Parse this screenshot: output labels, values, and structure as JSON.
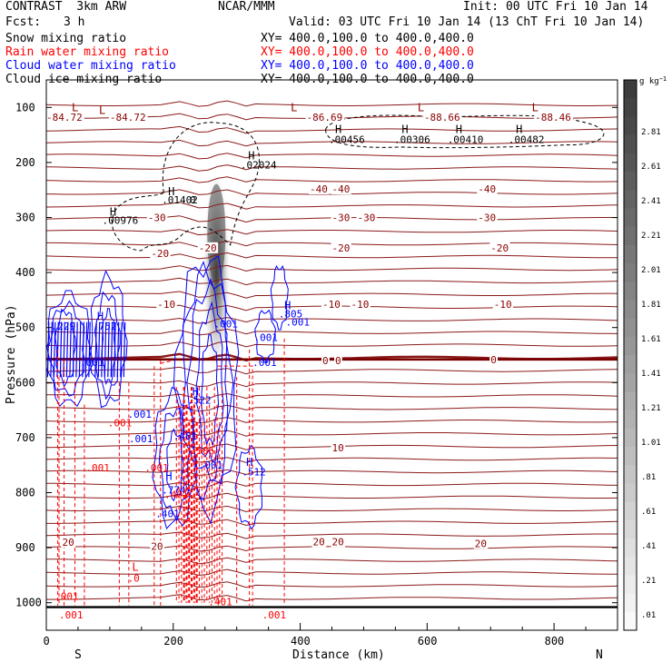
{
  "header": {
    "title": "CONTRAST  3km ARW",
    "center": "NCAR/MMM",
    "init": "Init: 00 UTC Fri 10 Jan 14",
    "fcst_label": "Fcst:",
    "fcst_value": "3 h",
    "valid": "Valid: 03 UTC Fri 10 Jan 14 (13 ChT Fri 10 Jan 14)"
  },
  "legend": [
    {
      "label": "Snow mixing ratio",
      "xy": "XY= 400.0,100.0 to 400.0,400.0",
      "color": "#000000"
    },
    {
      "label": "Rain water mixing ratio",
      "xy": "XY= 400.0,100.0 to 400.0,400.0",
      "color": "#ff0000"
    },
    {
      "label": "Cloud water mixing ratio",
      "xy": "XY= 400.0,100.0 to 400.0,400.0",
      "color": "#0000ff"
    },
    {
      "label": "Cloud ice mixing ratio",
      "xy": "XY= 400.0,100.0 to 400.0,400.0",
      "color": "#000000"
    }
  ],
  "chart_data": {
    "type": "cross-section",
    "xlabel": "Distance (km)",
    "ylabel": "Pressure (hPa)",
    "xlim": [
      0,
      900
    ],
    "ylim": [
      1050,
      50
    ],
    "xticks": [
      0,
      200,
      400,
      600,
      800
    ],
    "yticks": [
      100,
      200,
      300,
      400,
      500,
      600,
      700,
      800,
      900,
      1000
    ],
    "x_end_labels": {
      "left": "S",
      "right": "N"
    },
    "colorbar": {
      "unit": "g kg",
      "unit_exp": "−1",
      "ticks": [
        "2.81",
        "2.61",
        "2.41",
        "2.21",
        "2.01",
        "1.81",
        "1.61",
        "1.41",
        "1.21",
        "1.01",
        ".81",
        ".61",
        ".41",
        ".21",
        ".01"
      ]
    },
    "temperature_labels": [
      {
        "text": "-84.72",
        "x": 0,
        "p": 118
      },
      {
        "text": "-84.72",
        "x": 100,
        "p": 118
      },
      {
        "text": "-86.69",
        "x": 410,
        "p": 118
      },
      {
        "text": "-88.66",
        "x": 595,
        "p": 118
      },
      {
        "text": "-88.46",
        "x": 770,
        "p": 118
      },
      {
        "text": "-40",
        "x": 415,
        "p": 248
      },
      {
        "text": "-40",
        "x": 450,
        "p": 248
      },
      {
        "text": "-40",
        "x": 680,
        "p": 248
      },
      {
        "text": "-30",
        "x": 160,
        "p": 300
      },
      {
        "text": "-30",
        "x": 450,
        "p": 300
      },
      {
        "text": "-30",
        "x": 490,
        "p": 300
      },
      {
        "text": "-30",
        "x": 680,
        "p": 300
      },
      {
        "text": "-20",
        "x": 165,
        "p": 365
      },
      {
        "text": "-20",
        "x": 240,
        "p": 355
      },
      {
        "text": "-20",
        "x": 450,
        "p": 355
      },
      {
        "text": "-20",
        "x": 700,
        "p": 355
      },
      {
        "text": "-10",
        "x": 175,
        "p": 458
      },
      {
        "text": "-10",
        "x": 435,
        "p": 458
      },
      {
        "text": "-10",
        "x": 480,
        "p": 458
      },
      {
        "text": "-10",
        "x": 705,
        "p": 458
      },
      {
        "text": "0",
        "x": 435,
        "p": 560
      },
      {
        "text": "0",
        "x": 455,
        "p": 560
      },
      {
        "text": "0",
        "x": 700,
        "p": 558
      },
      {
        "text": "10",
        "x": 450,
        "p": 718
      },
      {
        "text": "20",
        "x": 25,
        "p": 890
      },
      {
        "text": "20",
        "x": 165,
        "p": 897
      },
      {
        "text": "20",
        "x": 420,
        "p": 889
      },
      {
        "text": "20",
        "x": 450,
        "p": 889
      },
      {
        "text": "20",
        "x": 675,
        "p": 892
      }
    ],
    "hl_markers": [
      {
        "letter": "L",
        "x": 40,
        "p": 100,
        "color": "#8b0000"
      },
      {
        "letter": "L",
        "x": 83,
        "p": 105,
        "color": "#8b0000"
      },
      {
        "letter": "L",
        "x": 385,
        "p": 100,
        "color": "#8b0000"
      },
      {
        "letter": "L",
        "x": 585,
        "p": 100,
        "color": "#8b0000"
      },
      {
        "letter": "L",
        "x": 765,
        "p": 100,
        "color": "#8b0000"
      },
      {
        "letter": "H",
        "x": 455,
        "p": 140,
        "color": "#000000"
      },
      {
        "letter": "H",
        "x": 560,
        "p": 140,
        "color": "#000000"
      },
      {
        "letter": "H",
        "x": 645,
        "p": 140,
        "color": "#000000"
      },
      {
        "letter": "H",
        "x": 740,
        "p": 140,
        "color": "#000000"
      },
      {
        "letter": "H",
        "x": 318,
        "p": 188,
        "color": "#000000"
      },
      {
        "letter": "H",
        "x": 192,
        "p": 253,
        "color": "#000000"
      },
      {
        "letter": "H",
        "x": 100,
        "p": 290,
        "color": "#000000"
      },
      {
        "letter": "H",
        "x": 375,
        "p": 460,
        "color": "#0000ff"
      },
      {
        "letter": "H",
        "x": 80,
        "p": 480,
        "color": "#0000ff"
      },
      {
        "letter": "H",
        "x": 230,
        "p": 617,
        "color": "#0000ff"
      },
      {
        "letter": "H",
        "x": 315,
        "p": 745,
        "color": "#0000ff"
      },
      {
        "letter": "H",
        "x": 188,
        "p": 770,
        "color": "#0000ff"
      },
      {
        "letter": "L",
        "x": 135,
        "p": 935,
        "color": "#ff0000"
      }
    ],
    "snow_ice_labels": [
      {
        "text": ".00456",
        "x": 445,
        "p": 158
      },
      {
        "text": ".00306",
        "x": 548,
        "p": 158
      },
      {
        "text": ".00410",
        "x": 632,
        "p": 158
      },
      {
        "text": ".00482",
        "x": 728,
        "p": 158
      },
      {
        "text": ".02024",
        "x": 306,
        "p": 204
      },
      {
        "text": ".01402",
        "x": 182,
        "p": 268
      },
      {
        "text": "0",
        "x": 226,
        "p": 268
      },
      {
        "text": ".00976",
        "x": 88,
        "p": 305
      }
    ],
    "cloud_water_labels": [
      {
        "text": ".805",
        "x": 366,
        "p": 475
      },
      {
        "text": ".001",
        "x": 377,
        "p": 490
      },
      {
        "text": ".229",
        "x": 8,
        "p": 497
      },
      {
        "text": ".752",
        "x": 73,
        "p": 497
      },
      {
        "text": ".001",
        "x": 264,
        "p": 493
      },
      {
        "text": ".001",
        "x": 327,
        "p": 518
      },
      {
        "text": ".001",
        "x": 53,
        "p": 563
      },
      {
        "text": ".001",
        "x": 325,
        "p": 563
      },
      {
        "text": ".522",
        "x": 222,
        "p": 632
      },
      {
        "text": ".001",
        "x": 128,
        "p": 657
      },
      {
        "text": ".001",
        "x": 130,
        "p": 702
      },
      {
        "text": ".401",
        "x": 200,
        "p": 697
      },
      {
        "text": ".001",
        "x": 240,
        "p": 750
      },
      {
        "text": ".512",
        "x": 308,
        "p": 762
      },
      {
        "text": ".774",
        "x": 182,
        "p": 795
      },
      {
        "text": ".401",
        "x": 172,
        "p": 838
      }
    ],
    "rain_labels": [
      {
        "text": ".001",
        "x": 97,
        "p": 673
      },
      {
        "text": ".506",
        "x": 227,
        "p": 723
      },
      {
        "text": ".001",
        "x": 62,
        "p": 755
      },
      {
        "text": ".001",
        "x": 155,
        "p": 755
      },
      {
        "text": ".401",
        "x": 186,
        "p": 803
      },
      {
        "text": ".0",
        "x": 128,
        "p": 955
      },
      {
        "text": ".001",
        "x": 13,
        "p": 988
      },
      {
        "text": ".001",
        "x": 20,
        "p": 1022
      },
      {
        "text": ".401",
        "x": 255,
        "p": 998
      },
      {
        "text": ".001",
        "x": 340,
        "p": 1022
      }
    ]
  }
}
